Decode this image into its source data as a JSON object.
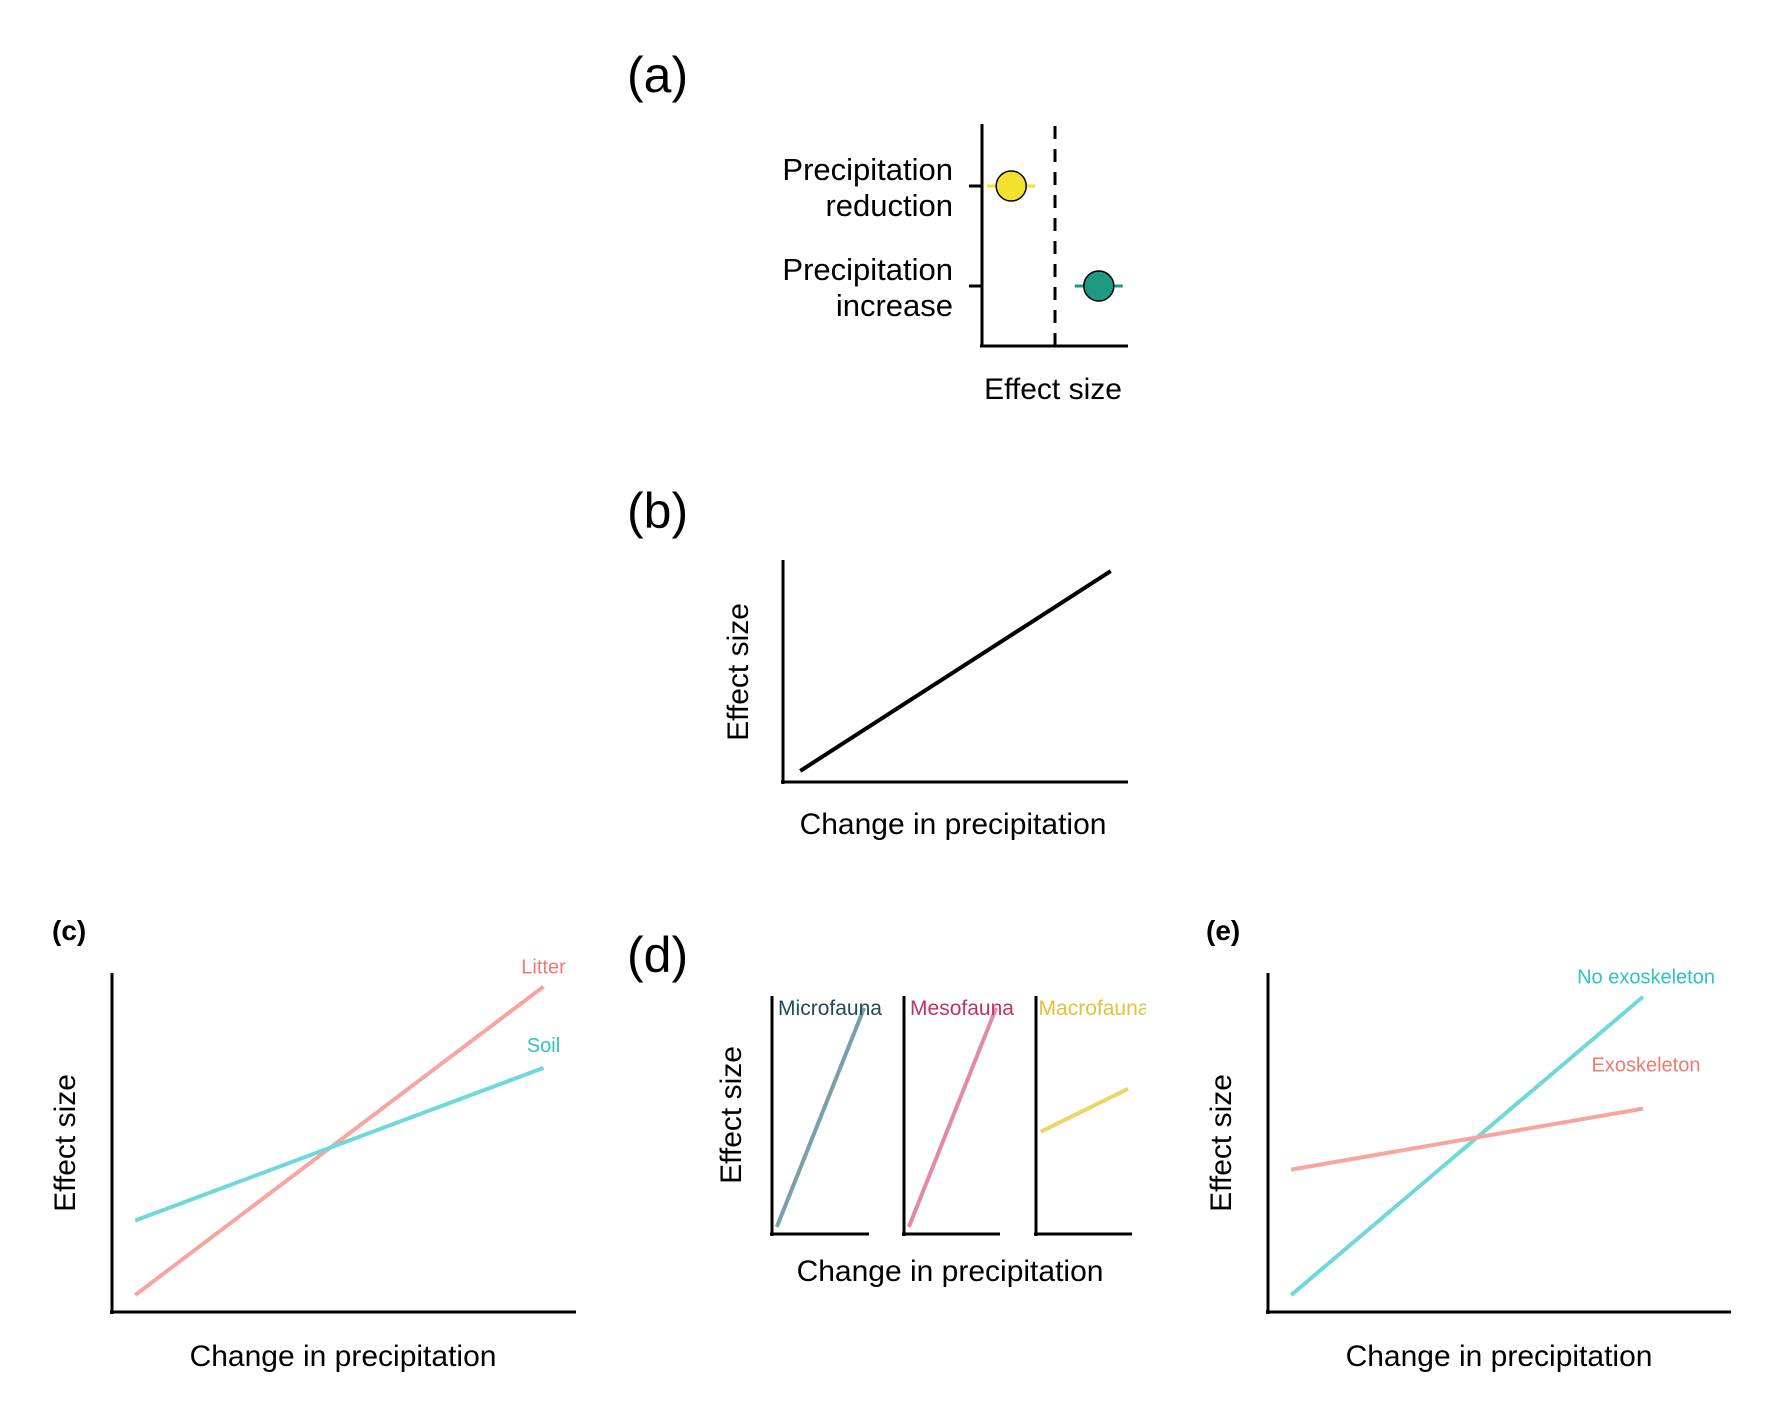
{
  "chart_data": [
    {
      "panel": "(a)",
      "type": "scatter",
      "orientation": "horizontal",
      "categories": [
        "Precipitation reduction",
        "Precipitation increase"
      ],
      "category_lines": [
        [
          "Precipitation",
          "reduction"
        ],
        [
          "Precipitation",
          "increase"
        ]
      ],
      "values": [
        -0.6,
        0.6
      ],
      "colors": [
        "#f5e130",
        "#1f9a82"
      ],
      "reference_line": 0,
      "xlabel": "Effect size",
      "ylabel": "",
      "xlim": [
        -1,
        1
      ]
    },
    {
      "panel": "(b)",
      "type": "line",
      "series": [
        {
          "color": "#000000",
          "x": [
            0.05,
            0.95
          ],
          "y": [
            0.05,
            0.95
          ]
        }
      ],
      "xlabel": "Change in precipitation",
      "ylabel": "Effect size",
      "xlim": [
        0,
        1
      ],
      "ylim": [
        0,
        1
      ]
    },
    {
      "panel": "(c)",
      "type": "line",
      "series": [
        {
          "name": "Litter",
          "color": "#f8a59f",
          "x": [
            0.05,
            0.93
          ],
          "y": [
            0.05,
            0.96
          ]
        },
        {
          "name": "Soil",
          "color": "#6fd9d9",
          "x": [
            0.05,
            0.93
          ],
          "y": [
            0.27,
            0.72
          ]
        }
      ],
      "xlabel": "Change in precipitation",
      "ylabel": "Effect size",
      "xlim": [
        0,
        1
      ],
      "ylim": [
        0,
        1
      ]
    },
    {
      "panel": "(d)",
      "type": "line",
      "facets": [
        {
          "label": "Microfauna",
          "color": "#7a9eab",
          "x": [
            0.05,
            0.95
          ],
          "y": [
            0.03,
            0.95
          ]
        },
        {
          "label": "Mesofauna",
          "color": "#e08aa8",
          "x": [
            0.05,
            0.95
          ],
          "y": [
            0.03,
            0.95
          ]
        },
        {
          "label": "Macrofauna",
          "color": "#ecd46a",
          "x": [
            0.05,
            0.95
          ],
          "y": [
            0.43,
            0.61
          ]
        }
      ],
      "xlabel": "Change in precipitation",
      "ylabel": "Effect size",
      "xlim": [
        0,
        1
      ],
      "ylim": [
        0,
        1
      ]
    },
    {
      "panel": "(e)",
      "type": "line",
      "series": [
        {
          "name": "No exoskeleton",
          "color": "#6fd9d9",
          "x": [
            0.05,
            0.81
          ],
          "y": [
            0.05,
            0.93
          ]
        },
        {
          "name": "Exoskeleton",
          "color": "#f8a59f",
          "x": [
            0.05,
            0.81
          ],
          "y": [
            0.42,
            0.6
          ]
        }
      ],
      "xlabel": "Change in precipitation",
      "ylabel": "Effect size",
      "xlim": [
        0,
        1
      ],
      "ylim": [
        0,
        1
      ]
    }
  ],
  "label_colors": {
    "litter": "#f07a73",
    "soil": "#2fc2c2",
    "no_exoskeleton": "#2fc2c2",
    "exoskeleton": "#f07a73",
    "microfauna": "#1e4b5c",
    "mesofauna": "#c2306a",
    "macrofauna": "#e3c13a"
  }
}
